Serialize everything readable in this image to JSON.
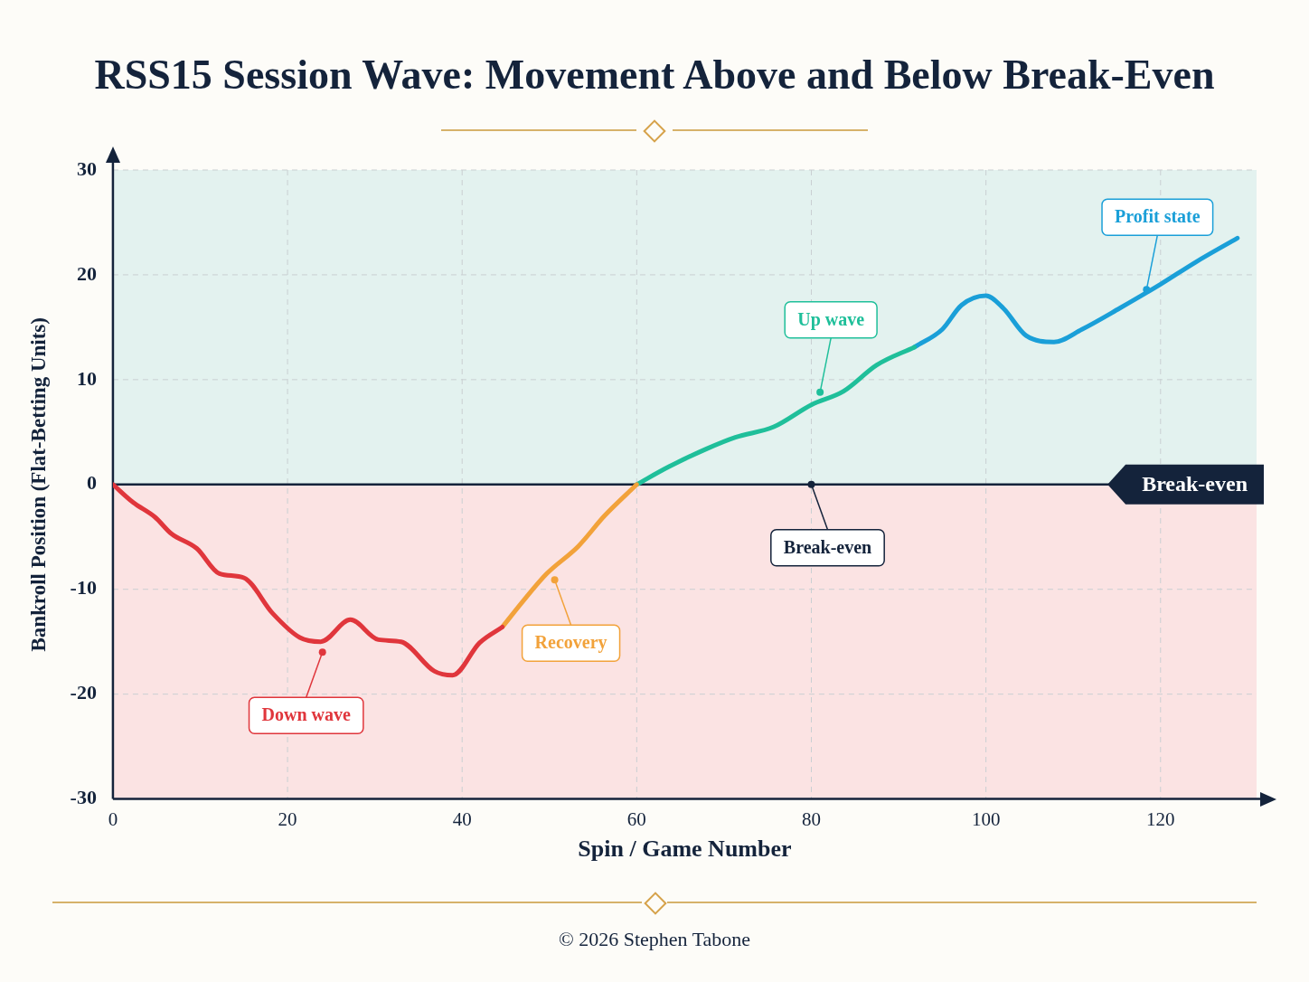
{
  "chart_data": {
    "type": "line",
    "title": "RSS15 Session Wave: Movement Above and Below Break-Even",
    "xlabel": "Spin / Game Number",
    "ylabel": "Bankroll Position (Flat-Betting Units)",
    "xlim": [
      0,
      131
    ],
    "xticks": [
      0,
      20,
      40,
      60,
      80,
      100,
      120
    ],
    "ylim": [
      -30,
      30
    ],
    "yticks": [
      -30,
      -20,
      -10,
      0,
      10,
      20,
      30
    ],
    "grid": true,
    "legend": false,
    "marker": "none",
    "line_style": "solid",
    "series": [
      {
        "color": "#e0363c",
        "x": [
          0,
          2.3,
          4.8,
          6.7,
          9.6,
          12.2,
          15,
          18.3,
          21.4,
          23.8,
          27.2,
          30.4,
          33,
          36.8,
          38.9,
          42,
          44.6
        ],
        "values": [
          0,
          -1.7,
          -3.1,
          -4.7,
          -6.1,
          -8.5,
          -8.9,
          -12.3,
          -14.6,
          -15,
          -12.9,
          -14.8,
          -15,
          -17.8,
          -18.2,
          -15.1,
          -13.6
        ]
      },
      {
        "color": "#f2a23a",
        "x": [
          44.6,
          47.1,
          49.7,
          53.3,
          56.3,
          60
        ],
        "values": [
          -13.6,
          -11,
          -8.5,
          -5.9,
          -3,
          0
        ]
      },
      {
        "color": "#1fbf9a",
        "x": [
          60,
          63.7,
          68,
          71.3,
          75.7,
          80,
          83.7,
          87.5,
          91.8
        ],
        "values": [
          0,
          1.7,
          3.4,
          4.5,
          5.5,
          7.6,
          8.9,
          11.4,
          13.1
        ]
      },
      {
        "color": "#1a9fd8",
        "x": [
          91.8,
          95,
          97.2,
          100,
          102,
          104.6,
          107.8,
          111,
          115.3,
          120,
          124,
          128.8
        ],
        "values": [
          13.1,
          14.8,
          17.1,
          18,
          16.8,
          14.2,
          13.6,
          14.8,
          16.8,
          19.1,
          21.2,
          23.5
        ]
      }
    ],
    "ref_lines": [
      {
        "axis": "y",
        "value": 0,
        "label": "Break-even",
        "color": "#14233b"
      }
    ],
    "bands": [
      {
        "axis": "y",
        "from": 0,
        "to": 30,
        "color": "#e3f2ef"
      },
      {
        "axis": "y",
        "from": -30,
        "to": 0,
        "color": "#fbe3e3"
      }
    ],
    "annotations": [
      {
        "text": "Down wave",
        "x": 24,
        "y": -16
      },
      {
        "text": "Recovery",
        "x": 50.6,
        "y": -9.1
      },
      {
        "text": "Up wave",
        "x": 81,
        "y": 8.8
      },
      {
        "text": "Profit state",
        "x": 118.4,
        "y": 18.6
      },
      {
        "text": "Break-even",
        "x": 80,
        "y": 0
      },
      "© 2026 Stephen Tabone"
    ]
  }
}
